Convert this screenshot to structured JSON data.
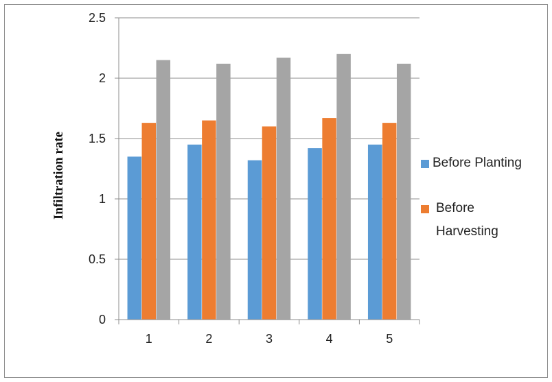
{
  "chart_data": {
    "type": "bar",
    "title": "",
    "xlabel": "",
    "ylabel": "Infiltration rate",
    "categories": [
      "1",
      "2",
      "3",
      "4",
      "5"
    ],
    "ylim": [
      0,
      2.5
    ],
    "yticks": [
      "0",
      "0.5",
      "1",
      "1.5",
      "2",
      "2.5"
    ],
    "grid": true,
    "legend_position": "right",
    "series": [
      {
        "name": "Before Planting",
        "color": "#5b9bd5",
        "values": [
          1.35,
          1.45,
          1.32,
          1.42,
          1.45
        ]
      },
      {
        "name": "Before Harvesting",
        "color": "#ed7d31",
        "values": [
          1.63,
          1.65,
          1.6,
          1.67,
          1.63
        ]
      },
      {
        "name": "",
        "color": "#a5a5a5",
        "values": [
          2.15,
          2.12,
          2.17,
          2.2,
          2.12
        ]
      }
    ],
    "legend": [
      {
        "label": "Before Planting",
        "color": "#5b9bd5"
      },
      {
        "label_lines": [
          "Before",
          "Harvesting"
        ],
        "color": "#ed7d31"
      }
    ]
  }
}
